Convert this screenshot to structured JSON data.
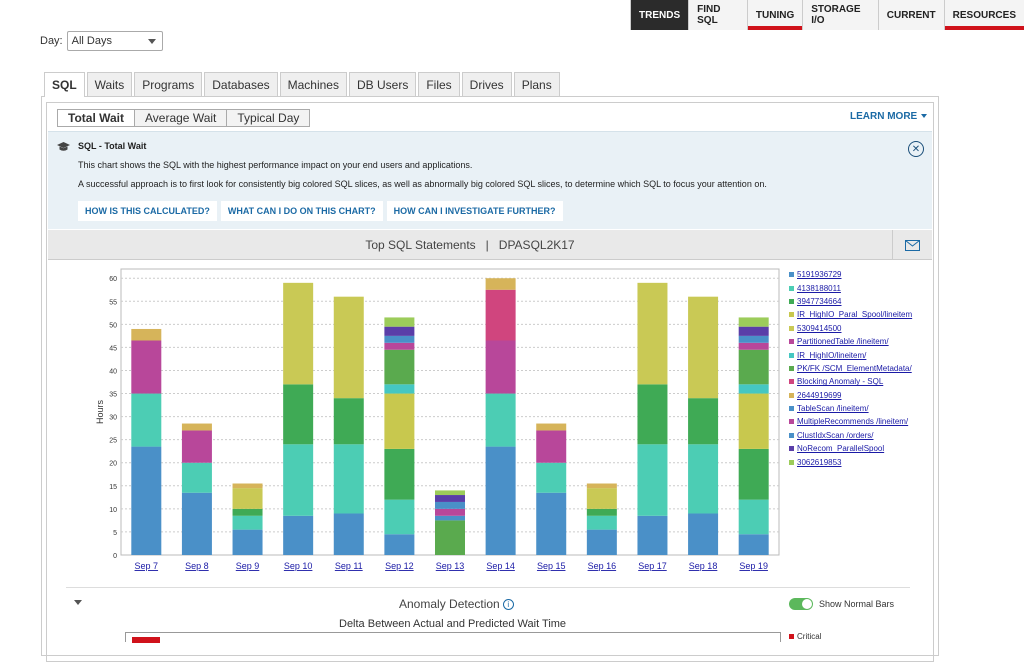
{
  "topnav": [
    {
      "label": "TRENDS",
      "active": true,
      "red": false
    },
    {
      "label": "FIND SQL",
      "active": false,
      "red": false
    },
    {
      "label": "TUNING",
      "active": false,
      "red": true
    },
    {
      "label": "STORAGE I/O",
      "active": false,
      "red": false
    },
    {
      "label": "CURRENT",
      "active": false,
      "red": false
    },
    {
      "label": "RESOURCES",
      "active": false,
      "red": true
    }
  ],
  "day": {
    "label": "Day:",
    "value": "All Days"
  },
  "main_tabs": [
    "SQL",
    "Waits",
    "Programs",
    "Databases",
    "Machines",
    "DB Users",
    "Files",
    "Drives",
    "Plans"
  ],
  "sub_tabs": [
    "Total Wait",
    "Average Wait",
    "Typical Day"
  ],
  "learn_more": "LEARN MORE",
  "info": {
    "title": "SQL - Total Wait",
    "line1": "This chart shows the SQL with the highest performance impact on your end users and applications.",
    "line2": "A successful approach is to first look for consistently big colored SQL slices, as well as abnormally big colored SQL slices, to determine which SQL to focus your attention on.",
    "buttons": [
      "HOW IS THIS CALCULATED?",
      "WHAT CAN I DO ON THIS CHART?",
      "HOW CAN I INVESTIGATE FURTHER?"
    ]
  },
  "chart_header": "Top SQL Statements   |   DPASQL2K17",
  "chart_data": {
    "type": "bar",
    "stacked": true,
    "ylabel": "Hours",
    "ylim": [
      0,
      62
    ],
    "yticks": [
      0,
      5,
      10,
      15,
      20,
      25,
      30,
      35,
      40,
      45,
      50,
      55,
      60
    ],
    "grid": true,
    "legend_position": "right",
    "categories": [
      "Sep 7",
      "Sep 8",
      "Sep 9",
      "Sep 10",
      "Sep 11",
      "Sep 12",
      "Sep 13",
      "Sep 14",
      "Sep 15",
      "Sep 16",
      "Sep 17",
      "Sep 18",
      "Sep 19"
    ],
    "series": [
      {
        "name": "5191936729",
        "color": "#4a90c8",
        "values": [
          23.5,
          13.5,
          5.5,
          8.5,
          9.0,
          4.5,
          0,
          23.5,
          13.5,
          5.5,
          8.5,
          9.0,
          4.5
        ]
      },
      {
        "name": "4138188011",
        "color": "#4ccdb4",
        "values": [
          11.5,
          6.5,
          3.0,
          15.5,
          15.0,
          7.5,
          0,
          11.5,
          6.5,
          3.0,
          15.5,
          15.0,
          7.5
        ]
      },
      {
        "name": "3947734664",
        "color": "#3faa55",
        "values": [
          0,
          0,
          1.5,
          13.0,
          10.0,
          11.0,
          0,
          0,
          0,
          1.5,
          13.0,
          10.0,
          11.0
        ]
      },
      {
        "name": "IR_HighIO_Paral_Spool/lineitem",
        "color": "#c8c84e",
        "values": [
          0,
          0,
          0,
          0,
          0,
          12.0,
          0,
          0,
          0,
          0,
          0,
          0,
          12.0
        ]
      },
      {
        "name": "5309414500",
        "color": "#c9c955",
        "values": [
          0,
          0,
          4.5,
          22.0,
          22.0,
          0,
          0,
          0,
          0,
          4.5,
          22.0,
          22.0,
          0
        ]
      },
      {
        "name": "PartitionedTable /lineitem/",
        "color": "#b8479a",
        "values": [
          11.5,
          7.0,
          0,
          0,
          0,
          0,
          0,
          11.5,
          7.0,
          0,
          0,
          0,
          0
        ]
      },
      {
        "name": "IR_HighIO/lineitem/",
        "color": "#45c7c2",
        "values": [
          0,
          0,
          0,
          0,
          0,
          2.0,
          0,
          0,
          0,
          0,
          0,
          0,
          2.0
        ]
      },
      {
        "name": "PK/FK /SCM_ElementMetadata/",
        "color": "#5aaa4e",
        "values": [
          0,
          0,
          0,
          0,
          0,
          7.5,
          7.5,
          0,
          0,
          0,
          0,
          0,
          7.5
        ]
      },
      {
        "name": "Blocking Anomaly - SQL",
        "color": "#d0457e",
        "values": [
          0,
          0,
          0,
          0,
          0,
          0,
          0,
          11.0,
          0,
          0,
          0,
          0,
          0
        ]
      },
      {
        "name": "2644919699",
        "color": "#d6b45a",
        "values": [
          2.5,
          1.5,
          1.0,
          0,
          0,
          0,
          0,
          2.5,
          1.5,
          1.0,
          0,
          0,
          0
        ]
      },
      {
        "name": "TableScan /lineitem/",
        "color": "#4a90c8",
        "values": [
          0,
          0,
          0,
          0,
          0,
          0,
          1.0,
          0,
          0,
          0,
          0,
          0,
          0
        ]
      },
      {
        "name": "MultipleRecommends /lineitem/",
        "color": "#b8479a",
        "values": [
          0,
          0,
          0,
          0,
          0,
          1.5,
          1.5,
          0,
          0,
          0,
          0,
          0,
          1.5
        ]
      },
      {
        "name": "ClustIdxScan /orders/",
        "color": "#4a90c8",
        "values": [
          0,
          0,
          0,
          0,
          0,
          1.5,
          1.5,
          0,
          0,
          0,
          0,
          0,
          1.5
        ]
      },
      {
        "name": "NoRecom_ParallelSpool",
        "color": "#5a3ea8",
        "values": [
          0,
          0,
          0,
          0,
          0,
          2.0,
          1.5,
          0,
          0,
          0,
          0,
          0,
          2.0
        ]
      },
      {
        "name": "3062619853",
        "color": "#9ccc5a",
        "values": [
          0,
          0,
          0,
          0,
          0,
          2.0,
          1.0,
          0,
          0,
          0,
          0,
          0,
          2.0
        ]
      }
    ]
  },
  "anomaly": {
    "title": "Anomaly Detection",
    "info_icon": "i",
    "toggle_label": "Show Normal Bars",
    "subtitle": "Delta Between Actual and Predicted Wait Time",
    "legend_first": "Critical",
    "critical_color": "#d0121b"
  },
  "icons": {
    "close": "✕",
    "mail": "mail-icon",
    "cap": "graduation-cap-icon"
  }
}
